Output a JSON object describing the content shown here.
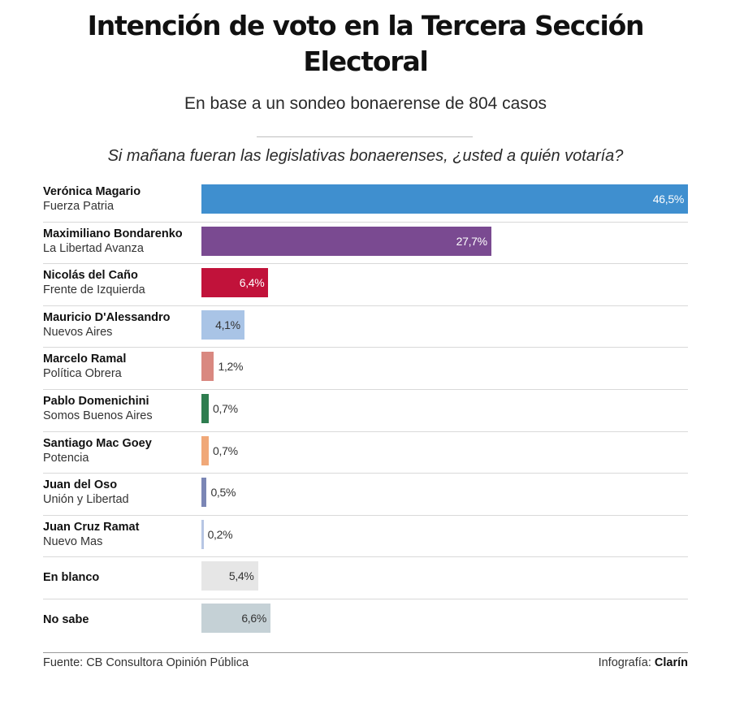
{
  "header": {
    "title_line1": "Intención de voto en la Tercera Sección",
    "title_line2": "Electoral",
    "subtitle": "En base a un sondeo bonaerense de 804 casos",
    "question": "Si mañana fueran las legislativas bonaerenses, ¿usted a quién votaría?"
  },
  "footer": {
    "source": "Fuente: CB Consultora Opinión Pública",
    "credit_prefix": "Infografía:",
    "credit_brand": "Clarín"
  },
  "chart_data": {
    "type": "bar",
    "orientation": "horizontal",
    "xlim": [
      0,
      46.5
    ],
    "unit": "%",
    "grid": false,
    "legend": "none",
    "categories": [
      {
        "name": "Verónica Magario",
        "party": "Fuerza Patria",
        "value": 46.5,
        "label": "46,5%",
        "color": "#3f8fcf",
        "label_color": "#ffffff",
        "label_inside": true
      },
      {
        "name": "Maximiliano Bondarenko",
        "party": "La Libertad Avanza",
        "value": 27.7,
        "label": "27,7%",
        "color": "#7a4a91",
        "label_color": "#ffffff",
        "label_inside": true
      },
      {
        "name": "Nicolás del Caño",
        "party": "Frente de Izquierda",
        "value": 6.4,
        "label": "6,4%",
        "color": "#c1123a",
        "label_color": "#ffffff",
        "label_inside": true
      },
      {
        "name": "Mauricio D'Alessandro",
        "party": "Nuevos Aires",
        "value": 4.1,
        "label": "4,1%",
        "color": "#a9c4e6",
        "label_color": "#333333",
        "label_inside": true
      },
      {
        "name": "Marcelo Ramal",
        "party": "Política Obrera",
        "value": 1.2,
        "label": "1,2%",
        "color": "#d98880",
        "label_color": "#333333",
        "label_inside": false
      },
      {
        "name": "Pablo Domenichini",
        "party": "Somos Buenos Aires",
        "value": 0.7,
        "label": "0,7%",
        "color": "#2e7d4f",
        "label_color": "#333333",
        "label_inside": false
      },
      {
        "name": "Santiago Mac Goey",
        "party": "Potencia",
        "value": 0.7,
        "label": "0,7%",
        "color": "#f0a878",
        "label_color": "#333333",
        "label_inside": false
      },
      {
        "name": "Juan del Oso",
        "party": "Unión y Libertad",
        "value": 0.5,
        "label": "0,5%",
        "color": "#7b86b5",
        "label_color": "#333333",
        "label_inside": false
      },
      {
        "name": "Juan Cruz Ramat",
        "party": "Nuevo Mas",
        "value": 0.2,
        "label": "0,2%",
        "color": "#b7c6e4",
        "label_color": "#333333",
        "label_inside": false
      },
      {
        "name": "En blanco",
        "party": "",
        "value": 5.4,
        "label": "5,4%",
        "color": "#e6e6e6",
        "label_color": "#333333",
        "label_inside": true
      },
      {
        "name": "No sabe",
        "party": "",
        "value": 6.6,
        "label": "6,6%",
        "color": "#c5d1d6",
        "label_color": "#333333",
        "label_inside": true
      }
    ]
  }
}
